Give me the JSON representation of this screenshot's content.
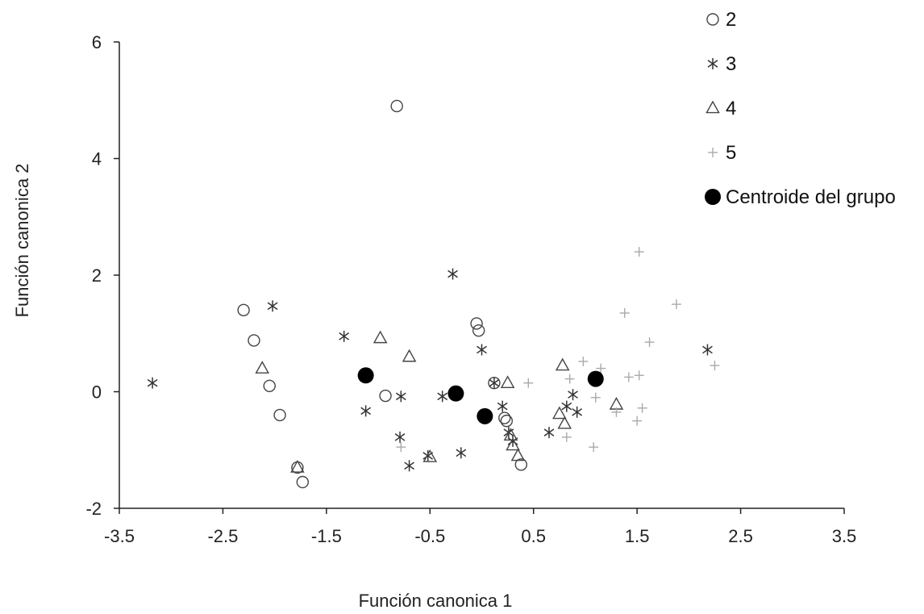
{
  "chart_data": {
    "type": "scatter",
    "title": "",
    "xlabel": "Función canonica 1",
    "ylabel": "Función canonica 2",
    "xlim": [
      -3.5,
      3.5
    ],
    "ylim": [
      -2,
      6
    ],
    "xticks": [
      "-3.5",
      "-2.5",
      "-1.5",
      "-0.5",
      "0.5",
      "1.5",
      "2.5",
      "3.5"
    ],
    "yticks": [
      "-2",
      "0",
      "2",
      "4",
      "6"
    ],
    "grid": false,
    "legend_position": "top-right",
    "series": [
      {
        "name": "2",
        "marker": "circle-open",
        "color": "#444444",
        "points": [
          [
            -0.82,
            4.9
          ],
          [
            -2.3,
            1.4
          ],
          [
            -2.2,
            0.88
          ],
          [
            -2.05,
            0.1
          ],
          [
            -1.95,
            -0.4
          ],
          [
            -1.78,
            -1.3
          ],
          [
            -1.73,
            -1.55
          ],
          [
            -0.93,
            -0.07
          ],
          [
            -0.05,
            1.17
          ],
          [
            -0.03,
            1.05
          ],
          [
            0.12,
            0.15
          ],
          [
            0.22,
            -0.45
          ],
          [
            0.24,
            -0.5
          ],
          [
            0.38,
            -1.25
          ]
        ]
      },
      {
        "name": "3",
        "marker": "asterisk",
        "color": "#333333",
        "points": [
          [
            -3.18,
            0.15
          ],
          [
            -2.02,
            1.47
          ],
          [
            -1.33,
            0.95
          ],
          [
            -1.12,
            -0.33
          ],
          [
            -0.78,
            -0.08
          ],
          [
            -0.79,
            -0.78
          ],
          [
            -0.7,
            -1.27
          ],
          [
            -0.52,
            -1.1
          ],
          [
            -0.38,
            -0.08
          ],
          [
            -0.28,
            2.02
          ],
          [
            -0.2,
            -1.05
          ],
          [
            0.0,
            0.72
          ],
          [
            0.12,
            0.15
          ],
          [
            0.2,
            -0.25
          ],
          [
            0.26,
            -0.7
          ],
          [
            0.3,
            -0.85
          ],
          [
            0.65,
            -0.7
          ],
          [
            0.82,
            -0.25
          ],
          [
            0.88,
            -0.05
          ],
          [
            0.92,
            -0.35
          ],
          [
            2.18,
            0.72
          ]
        ]
      },
      {
        "name": "4",
        "marker": "triangle-open",
        "color": "#444444",
        "points": [
          [
            -2.12,
            0.4
          ],
          [
            -1.78,
            -1.3
          ],
          [
            -0.98,
            0.92
          ],
          [
            -0.7,
            0.6
          ],
          [
            -0.5,
            -1.12
          ],
          [
            0.25,
            0.15
          ],
          [
            0.28,
            -0.75
          ],
          [
            0.3,
            -0.92
          ],
          [
            0.35,
            -1.1
          ],
          [
            0.75,
            -0.38
          ],
          [
            0.78,
            0.45
          ],
          [
            0.8,
            -0.55
          ],
          [
            1.3,
            -0.22
          ]
        ]
      },
      {
        "name": "5",
        "marker": "plus",
        "color": "#aaaaaa",
        "points": [
          [
            -0.78,
            -0.95
          ],
          [
            0.45,
            0.15
          ],
          [
            0.82,
            -0.78
          ],
          [
            0.85,
            0.22
          ],
          [
            0.98,
            0.52
          ],
          [
            1.08,
            -0.95
          ],
          [
            1.1,
            -0.1
          ],
          [
            1.15,
            0.4
          ],
          [
            1.3,
            -0.35
          ],
          [
            1.38,
            1.35
          ],
          [
            1.42,
            0.25
          ],
          [
            1.5,
            -0.5
          ],
          [
            1.52,
            2.4
          ],
          [
            1.52,
            0.28
          ],
          [
            1.55,
            -0.28
          ],
          [
            1.62,
            0.85
          ],
          [
            1.88,
            1.5
          ],
          [
            2.25,
            0.45
          ]
        ]
      },
      {
        "name": "Centroide del grupo",
        "marker": "circle-filled",
        "color": "#000000",
        "points": [
          [
            -1.12,
            0.28
          ],
          [
            -0.25,
            -0.03
          ],
          [
            0.03,
            -0.42
          ],
          [
            1.1,
            0.22
          ]
        ]
      }
    ]
  }
}
